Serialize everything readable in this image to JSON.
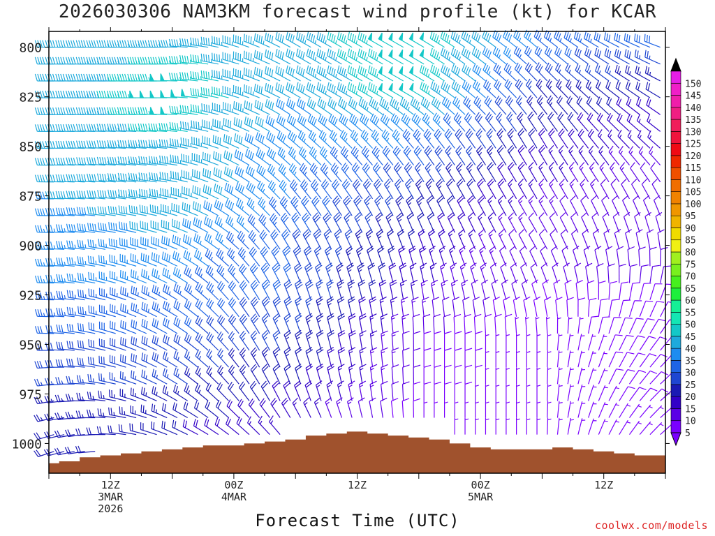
{
  "chart_data": {
    "type": "wind-barb-profile",
    "title": "2026030306 NAM3KM forecast wind profile (kt) for KCAR",
    "xlabel": "Forecast Time (UTC)",
    "ylabel": "",
    "y_axis": {
      "scale": "pressure (hPa), inverted",
      "range": [
        1015,
        792
      ],
      "ticks": [
        800,
        825,
        850,
        875,
        900,
        925,
        950,
        975,
        1000
      ]
    },
    "x_axis": {
      "start": "2026-03-03 06Z",
      "end": "2026-03-05 18Z",
      "ticks": [
        {
          "hour": 6,
          "lines": [
            "12Z",
            "3MAR",
            "2026"
          ]
        },
        {
          "hour": 18,
          "lines": [
            "00Z",
            "4MAR"
          ]
        },
        {
          "hour": 30,
          "lines": [
            "12Z"
          ]
        },
        {
          "hour": 42,
          "lines": [
            "00Z",
            "5MAR"
          ]
        },
        {
          "hour": 54,
          "lines": [
            "12Z"
          ]
        }
      ]
    },
    "colorbar": {
      "units": "kt",
      "levels": [
        5,
        10,
        15,
        20,
        25,
        30,
        35,
        40,
        45,
        50,
        55,
        60,
        65,
        70,
        75,
        80,
        85,
        90,
        95,
        100,
        105,
        110,
        115,
        120,
        125,
        130,
        135,
        140,
        145,
        150
      ],
      "colors": [
        "#7a00ff",
        "#5a00e6",
        "#3200c8",
        "#1a1ab4",
        "#1e46d2",
        "#1e64e6",
        "#1e8cf0",
        "#1eaadc",
        "#14c8c8",
        "#14e6b4",
        "#14f096",
        "#1ef03c",
        "#46f01e",
        "#78f01e",
        "#a0f01e",
        "#f0f014",
        "#f0dc00",
        "#f0b400",
        "#f09600",
        "#f08200",
        "#f06e00",
        "#f05000",
        "#f02800",
        "#f00a14",
        "#f0143c",
        "#f01e5a",
        "#f01e82",
        "#f01eaa",
        "#f01ec8",
        "#e61ee6"
      ]
    },
    "terrain_color": "#a0522d",
    "surface_pressure_by_hour": [
      [
        0,
        1010
      ],
      [
        2,
        1009
      ],
      [
        4,
        1007
      ],
      [
        6,
        1006
      ],
      [
        8,
        1005
      ],
      [
        10,
        1004
      ],
      [
        12,
        1003
      ],
      [
        14,
        1002
      ],
      [
        16,
        1001
      ],
      [
        18,
        1001
      ],
      [
        20,
        1000
      ],
      [
        22,
        999
      ],
      [
        24,
        998
      ],
      [
        26,
        996
      ],
      [
        28,
        995
      ],
      [
        30,
        994
      ],
      [
        32,
        995
      ],
      [
        34,
        996
      ],
      [
        36,
        997
      ],
      [
        38,
        998
      ],
      [
        40,
        1000
      ],
      [
        42,
        1002
      ],
      [
        44,
        1003
      ],
      [
        46,
        1003
      ],
      [
        48,
        1003
      ],
      [
        50,
        1002
      ],
      [
        52,
        1003
      ],
      [
        54,
        1004
      ],
      [
        56,
        1005
      ],
      [
        58,
        1006
      ],
      [
        60,
        1006
      ]
    ],
    "wind_samples": {
      "levels_hPa": [
        800,
        825,
        850,
        875,
        900,
        925,
        950,
        975,
        1000
      ],
      "hours": [
        0,
        12,
        24,
        36,
        48,
        60
      ],
      "speed_kt": [
        [
          40,
          45,
          42,
          50,
          35,
          30
        ],
        [
          40,
          50,
          40,
          50,
          25,
          20
        ],
        [
          40,
          45,
          38,
          35,
          20,
          15
        ],
        [
          40,
          45,
          35,
          25,
          15,
          10
        ],
        [
          35,
          40,
          30,
          20,
          10,
          10
        ],
        [
          35,
          35,
          30,
          15,
          10,
          10
        ],
        [
          30,
          30,
          25,
          10,
          5,
          10
        ],
        [
          25,
          25,
          20,
          10,
          5,
          10
        ],
        [
          20,
          20,
          15,
          5,
          5,
          5
        ]
      ],
      "direction_deg": [
        [
          270,
          270,
          300,
          300,
          310,
          290
        ],
        [
          270,
          270,
          300,
          300,
          320,
          300
        ],
        [
          270,
          275,
          310,
          320,
          330,
          310
        ],
        [
          270,
          280,
          320,
          330,
          330,
          330
        ],
        [
          270,
          290,
          330,
          340,
          330,
          350
        ],
        [
          270,
          300,
          340,
          350,
          340,
          20
        ],
        [
          270,
          300,
          340,
          360,
          360,
          40
        ],
        [
          260,
          300,
          340,
          360,
          360,
          50
        ],
        [
          250,
          290,
          320,
          360,
          360,
          50
        ]
      ]
    }
  }
}
